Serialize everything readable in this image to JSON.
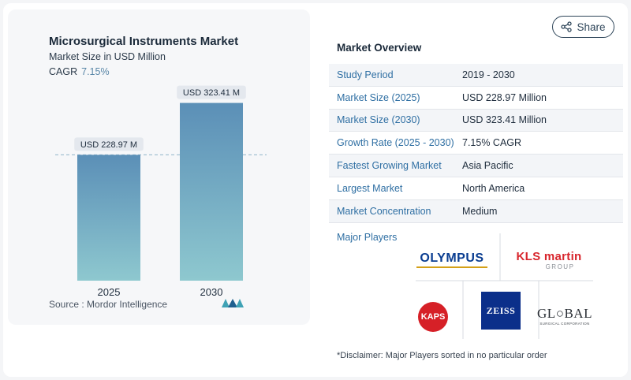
{
  "chart": {
    "title": "Microsurgical Instruments Market",
    "subtitle": "Market Size in USD Million",
    "cagr_label": "CAGR",
    "cagr_value": "7.15%",
    "source_label": "Source :",
    "source_value": "Mordor Intelligence"
  },
  "chart_data": {
    "type": "bar",
    "title": "Microsurgical Instruments Market",
    "subtitle": "Market Size in USD Million",
    "categories": [
      "2025",
      "2030"
    ],
    "values": [
      228.97,
      323.41
    ],
    "data_labels": [
      "USD 228.97 M",
      "USD 323.41 M"
    ],
    "ylim": [
      0,
      340
    ],
    "reference_line": 228.97,
    "bar_color_top": "#5b8fb7",
    "bar_color_bottom": "#8ec8cf"
  },
  "share": {
    "label": "Share"
  },
  "overview": {
    "title": "Market Overview",
    "rows": [
      {
        "label": "Study Period",
        "value": "2019 - 2030"
      },
      {
        "label": "Market Size (2025)",
        "value": "USD 228.97 Million"
      },
      {
        "label": "Market Size (2030)",
        "value": "USD 323.41 Million"
      },
      {
        "label": "Growth Rate (2025 - 2030)",
        "value": "7.15% CAGR"
      },
      {
        "label": "Fastest Growing Market",
        "value": "Asia Pacific"
      },
      {
        "label": "Largest Market",
        "value": "North America"
      },
      {
        "label": "Market Concentration",
        "value": "Medium"
      }
    ]
  },
  "players": {
    "title": "Major Players",
    "logos": {
      "olympus": "OLYMPUS",
      "kls_line1": "KLS martin",
      "kls_line2": "GROUP",
      "kaps": "KAPS",
      "zeiss": "ZEISS",
      "global_line1": "GL○BAL",
      "global_line2": "SURGICAL CORPORATION"
    }
  },
  "disclaimer": "*Disclaimer: Major Players sorted in no particular order",
  "colors": {
    "accent_blue": "#2f6fa3",
    "olympus_blue": "#0a3d91",
    "kls_red": "#d8262d",
    "kaps_red": "#d62027",
    "zeiss_blue": "#0b2f8a"
  }
}
